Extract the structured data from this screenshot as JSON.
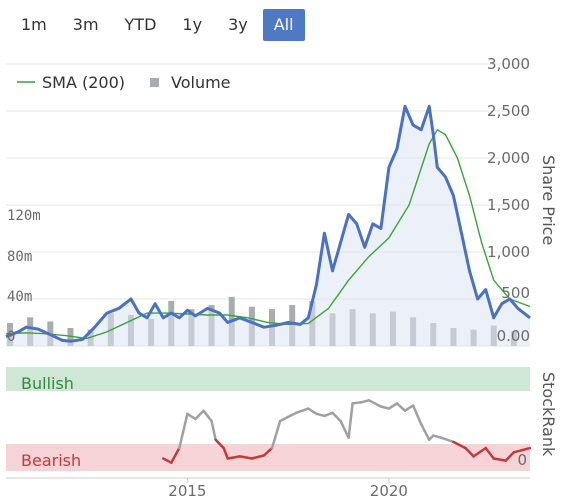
{
  "range_selector": {
    "buttons": [
      "1m",
      "3m",
      "YTD",
      "1y",
      "3y",
      "All"
    ],
    "active": "All",
    "active_color": "#4f79c3"
  },
  "chart_data": [
    {
      "type": "line",
      "legend": [
        {
          "name": "SMA (200)",
          "color": "#3aa43a",
          "marker": "line"
        },
        {
          "name": "Volume",
          "color": "#a9abb0",
          "marker": "square"
        }
      ],
      "ylabel": "Share Price",
      "yticks": [
        "3,000",
        "2,500",
        "2,000",
        "1,500",
        "1,000",
        "500",
        "0.00"
      ],
      "ylim": [
        0,
        3000
      ],
      "volume_ticks": [
        "120m",
        "80m",
        "40m",
        "0"
      ],
      "volume_lim": [
        0,
        160
      ],
      "xticks": [
        "2015",
        "2020"
      ],
      "x_range": [
        2010.5,
        2023.5
      ],
      "price": {
        "name": "Share Price",
        "color": "#4a72c0",
        "x": [
          2010.5,
          2010.8,
          2011.0,
          2011.3,
          2011.6,
          2011.9,
          2012.1,
          2012.4,
          2012.7,
          2013.0,
          2013.3,
          2013.6,
          2013.8,
          2014.0,
          2014.2,
          2014.4,
          2014.6,
          2014.8,
          2015.0,
          2015.2,
          2015.5,
          2015.8,
          2016.0,
          2016.3,
          2016.6,
          2016.9,
          2017.2,
          2017.5,
          2017.8,
          2018.0,
          2018.2,
          2018.4,
          2018.6,
          2018.8,
          2019.0,
          2019.2,
          2019.4,
          2019.6,
          2019.8,
          2020.0,
          2020.2,
          2020.4,
          2020.6,
          2020.8,
          2021.0,
          2021.1,
          2021.2,
          2021.4,
          2021.6,
          2021.8,
          2022.0,
          2022.2,
          2022.4,
          2022.6,
          2022.8,
          2023.0,
          2023.2,
          2023.5
        ],
        "values": [
          100,
          150,
          200,
          180,
          120,
          60,
          50,
          70,
          200,
          350,
          400,
          500,
          350,
          300,
          450,
          300,
          350,
          300,
          380,
          320,
          400,
          350,
          250,
          300,
          250,
          200,
          220,
          250,
          230,
          300,
          650,
          1200,
          800,
          1100,
          1400,
          1300,
          1050,
          1300,
          1250,
          1900,
          2100,
          2550,
          2350,
          2300,
          2550,
          2250,
          1900,
          1800,
          1600,
          1200,
          800,
          500,
          600,
          300,
          450,
          500,
          400,
          300
        ]
      },
      "sma": {
        "name": "SMA (200)",
        "color": "#3aa43a",
        "x": [
          2010.5,
          2011.0,
          2011.5,
          2012.0,
          2012.5,
          2013.0,
          2013.5,
          2014.0,
          2014.5,
          2015.0,
          2015.5,
          2016.0,
          2016.5,
          2017.0,
          2017.5,
          2018.0,
          2018.5,
          2019.0,
          2019.5,
          2020.0,
          2020.5,
          2021.0,
          2021.2,
          2021.4,
          2021.7,
          2022.0,
          2022.3,
          2022.6,
          2023.0,
          2023.5
        ],
        "values": [
          130,
          140,
          130,
          110,
          80,
          150,
          250,
          350,
          350,
          340,
          330,
          330,
          300,
          250,
          230,
          240,
          400,
          700,
          950,
          1150,
          1500,
          2150,
          2300,
          2250,
          2000,
          1600,
          1100,
          700,
          500,
          420
        ]
      },
      "volume": {
        "name": "Volume",
        "color": "#a9abb0",
        "x": [
          2010.6,
          2011.1,
          2011.6,
          2012.1,
          2012.6,
          2013.1,
          2013.6,
          2014.1,
          2014.6,
          2015.1,
          2015.6,
          2016.1,
          2016.6,
          2017.1,
          2017.6,
          2018.1,
          2018.6,
          2019.1,
          2019.6,
          2020.1,
          2020.6,
          2021.1,
          2021.6,
          2022.1,
          2022.6,
          2023.1
        ],
        "values": [
          28,
          35,
          30,
          22,
          20,
          40,
          38,
          33,
          55,
          45,
          50,
          60,
          48,
          45,
          50,
          55,
          40,
          45,
          40,
          42,
          35,
          28,
          22,
          20,
          25,
          18
        ]
      }
    },
    {
      "type": "line",
      "ylabel": "StockRank",
      "bands": [
        {
          "label": "Bullish",
          "color": "#2e8b3a",
          "fill": "#cfe8d6"
        },
        {
          "label": "Bearish",
          "color": "#c43a3a",
          "fill": "#f6d3d6"
        }
      ],
      "yticks": [
        "0"
      ],
      "ylim": [
        0,
        100
      ],
      "stockrank": {
        "x": [
          2014.4,
          2014.6,
          2014.7,
          2014.8,
          2015.0,
          2015.2,
          2015.4,
          2015.6,
          2015.7,
          2015.9,
          2016.0,
          2016.3,
          2016.6,
          2016.9,
          2017.1,
          2017.3,
          2017.5,
          2017.7,
          2018.0,
          2018.2,
          2018.4,
          2018.6,
          2018.8,
          2019.0,
          2019.1,
          2019.3,
          2019.5,
          2019.8,
          2020.0,
          2020.2,
          2020.4,
          2020.6,
          2020.8,
          2021.0,
          2021.1,
          2021.3,
          2021.6,
          2021.9,
          2022.1,
          2022.4,
          2022.6,
          2022.9,
          2023.1,
          2023.3,
          2023.5
        ],
        "values": [
          12,
          8,
          15,
          22,
          55,
          50,
          58,
          48,
          30,
          22,
          12,
          14,
          12,
          15,
          22,
          48,
          52,
          56,
          60,
          55,
          53,
          56,
          48,
          32,
          65,
          66,
          68,
          62,
          60,
          65,
          58,
          63,
          45,
          30,
          34,
          32,
          28,
          22,
          14,
          22,
          12,
          10,
          18,
          20,
          22
        ],
        "colors": {
          "bearish": "#c43a3a",
          "neutral": "#a0a0a0"
        },
        "bearish_below": 30
      }
    }
  ]
}
